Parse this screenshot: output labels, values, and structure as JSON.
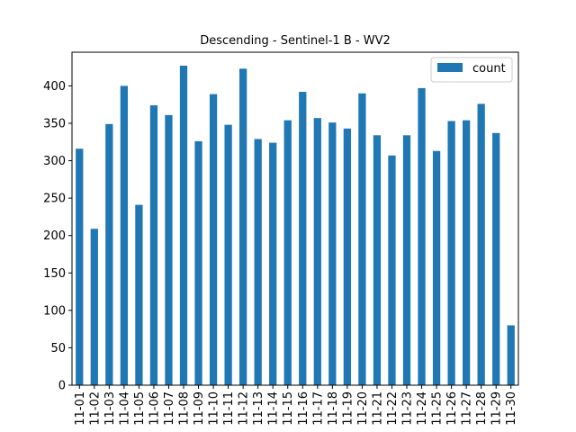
{
  "chart_data": {
    "type": "bar",
    "title": "Descending - Sentinel-1 B - WV2",
    "xlabel": "",
    "ylabel": "",
    "categories": [
      "11-01",
      "11-02",
      "11-03",
      "11-04",
      "11-05",
      "11-06",
      "11-07",
      "11-08",
      "11-09",
      "11-10",
      "11-11",
      "11-12",
      "11-13",
      "11-14",
      "11-15",
      "11-16",
      "11-17",
      "11-18",
      "11-19",
      "11-20",
      "11-21",
      "11-22",
      "11-23",
      "11-24",
      "11-25",
      "11-26",
      "11-27",
      "11-28",
      "11-29",
      "11-30"
    ],
    "series": [
      {
        "name": "count",
        "color": "#1f77b4",
        "values": [
          316,
          209,
          349,
          400,
          241,
          374,
          361,
          427,
          326,
          389,
          348,
          423,
          329,
          324,
          354,
          392,
          357,
          351,
          343,
          390,
          334,
          307,
          334,
          397,
          313,
          353,
          354,
          376,
          337,
          80
        ]
      }
    ],
    "ylim": [
      0,
      445
    ],
    "yticks": [
      0,
      50,
      100,
      150,
      200,
      250,
      300,
      350,
      400
    ],
    "legend": {
      "position": "top-right",
      "label": "count"
    },
    "grid": false
  }
}
